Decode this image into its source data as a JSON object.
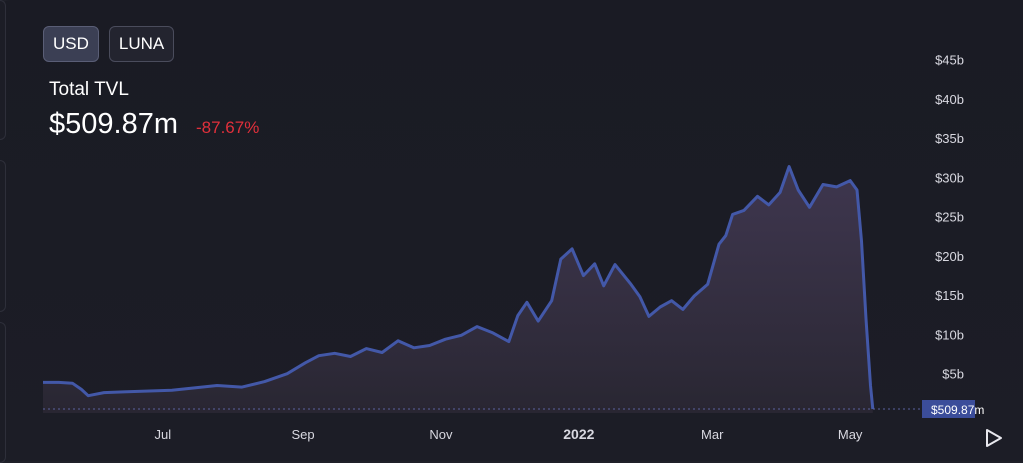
{
  "toggles": [
    {
      "label": "USD",
      "active": true
    },
    {
      "label": "LUNA",
      "active": false
    }
  ],
  "header": {
    "title": "Total TVL",
    "value": "$509.87m",
    "change": "-87.67%"
  },
  "colors": {
    "line": "#4358a8",
    "change_negative": "#e0303b",
    "current_badge": "#3b4d9a"
  },
  "current_value_label": "$509.87m",
  "play_button": "play-icon",
  "chart_data": {
    "type": "area",
    "title": "",
    "xlabel": "",
    "ylabel": "",
    "ylim": [
      0,
      47
    ],
    "y_unit": "billion USD",
    "y_axis_side": "right",
    "yticks": [
      5,
      10,
      15,
      20,
      25,
      30,
      35,
      40,
      45
    ],
    "ytick_labels": [
      "$5b",
      "$10b",
      "$15b",
      "$20b",
      "$25b",
      "$30b",
      "$35b",
      "$40b",
      "$45b"
    ],
    "xlim": [
      "2021-05-09",
      "2022-05-31"
    ],
    "xticks": [
      "2021-07-01",
      "2021-09-01",
      "2021-11-01",
      "2022-01-01",
      "2022-03-01",
      "2022-05-01"
    ],
    "xtick_labels": [
      "Jul",
      "Sep",
      "Nov",
      "2022",
      "Mar",
      "May"
    ],
    "grid": false,
    "legend": "none",
    "series": [
      {
        "points": [
          [
            "2021-05-09",
            3.9
          ],
          [
            "2021-05-16",
            3.9
          ],
          [
            "2021-05-22",
            3.8
          ],
          [
            "2021-05-26",
            3.0
          ],
          [
            "2021-05-29",
            2.2
          ],
          [
            "2021-06-05",
            2.6
          ],
          [
            "2021-06-15",
            2.7
          ],
          [
            "2021-06-25",
            2.8
          ],
          [
            "2021-07-05",
            2.9
          ],
          [
            "2021-07-15",
            3.2
          ],
          [
            "2021-07-25",
            3.5
          ],
          [
            "2021-08-05",
            3.3
          ],
          [
            "2021-08-15",
            4.0
          ],
          [
            "2021-08-25",
            5.0
          ],
          [
            "2021-09-02",
            6.4
          ],
          [
            "2021-09-08",
            7.3
          ],
          [
            "2021-09-15",
            7.6
          ],
          [
            "2021-09-22",
            7.2
          ],
          [
            "2021-09-29",
            8.2
          ],
          [
            "2021-10-06",
            7.7
          ],
          [
            "2021-10-13",
            9.2
          ],
          [
            "2021-10-20",
            8.3
          ],
          [
            "2021-10-27",
            8.6
          ],
          [
            "2021-11-03",
            9.4
          ],
          [
            "2021-11-10",
            9.9
          ],
          [
            "2021-11-17",
            11.0
          ],
          [
            "2021-11-24",
            10.2
          ],
          [
            "2021-12-01",
            9.1
          ],
          [
            "2021-12-05",
            12.4
          ],
          [
            "2021-12-09",
            14.1
          ],
          [
            "2021-12-14",
            11.7
          ],
          [
            "2021-12-20",
            14.3
          ],
          [
            "2021-12-24",
            19.6
          ],
          [
            "2021-12-29",
            20.9
          ],
          [
            "2022-01-03",
            17.5
          ],
          [
            "2022-01-08",
            19.0
          ],
          [
            "2022-01-12",
            16.2
          ],
          [
            "2022-01-17",
            18.9
          ],
          [
            "2022-01-24",
            16.4
          ],
          [
            "2022-01-28",
            14.8
          ],
          [
            "2022-02-01",
            12.3
          ],
          [
            "2022-02-06",
            13.5
          ],
          [
            "2022-02-11",
            14.3
          ],
          [
            "2022-02-16",
            13.2
          ],
          [
            "2022-02-21",
            14.9
          ],
          [
            "2022-02-27",
            16.4
          ],
          [
            "2022-03-04",
            21.5
          ],
          [
            "2022-03-07",
            22.6
          ],
          [
            "2022-03-10",
            25.3
          ],
          [
            "2022-03-15",
            25.8
          ],
          [
            "2022-03-21",
            27.6
          ],
          [
            "2022-03-26",
            26.5
          ],
          [
            "2022-03-31",
            28.1
          ],
          [
            "2022-04-04",
            31.4
          ],
          [
            "2022-04-08",
            28.4
          ],
          [
            "2022-04-13",
            26.2
          ],
          [
            "2022-04-19",
            29.1
          ],
          [
            "2022-04-25",
            28.8
          ],
          [
            "2022-05-01",
            29.6
          ],
          [
            "2022-05-04",
            28.4
          ],
          [
            "2022-05-06",
            21.9
          ],
          [
            "2022-05-08",
            12.0
          ],
          [
            "2022-05-10",
            3.5
          ],
          [
            "2022-05-11",
            0.51
          ]
        ]
      }
    ]
  }
}
